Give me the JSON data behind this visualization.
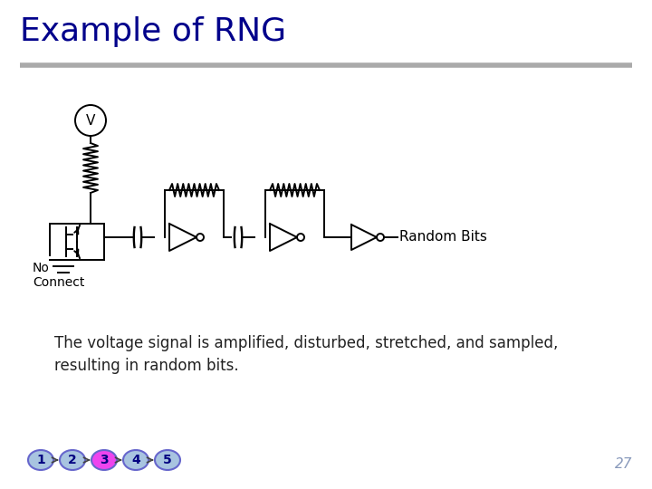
{
  "title": "Example of RNG",
  "title_color": "#00008B",
  "title_fontsize": 26,
  "bg_color": "#FFFFFF",
  "separator_color": "#AAAAAA",
  "circuit_color": "#000000",
  "label_random_bits": "Random Bits",
  "label_no_connect": "No\nConnect",
  "label_v": "V",
  "description": "The voltage signal is amplified, disturbed, stretched, and sampled,\nresulting in random bits.",
  "description_fontsize": 12,
  "page_number": "27",
  "nav_items": [
    "1",
    "2",
    "3",
    "4",
    "5"
  ],
  "nav_colors": [
    "#A8C4E0",
    "#A8C4E0",
    "#EE44EE",
    "#A8C4E0",
    "#A8C4E0"
  ],
  "nav_text_color": "#000080",
  "nav_border_color": "#6666CC"
}
